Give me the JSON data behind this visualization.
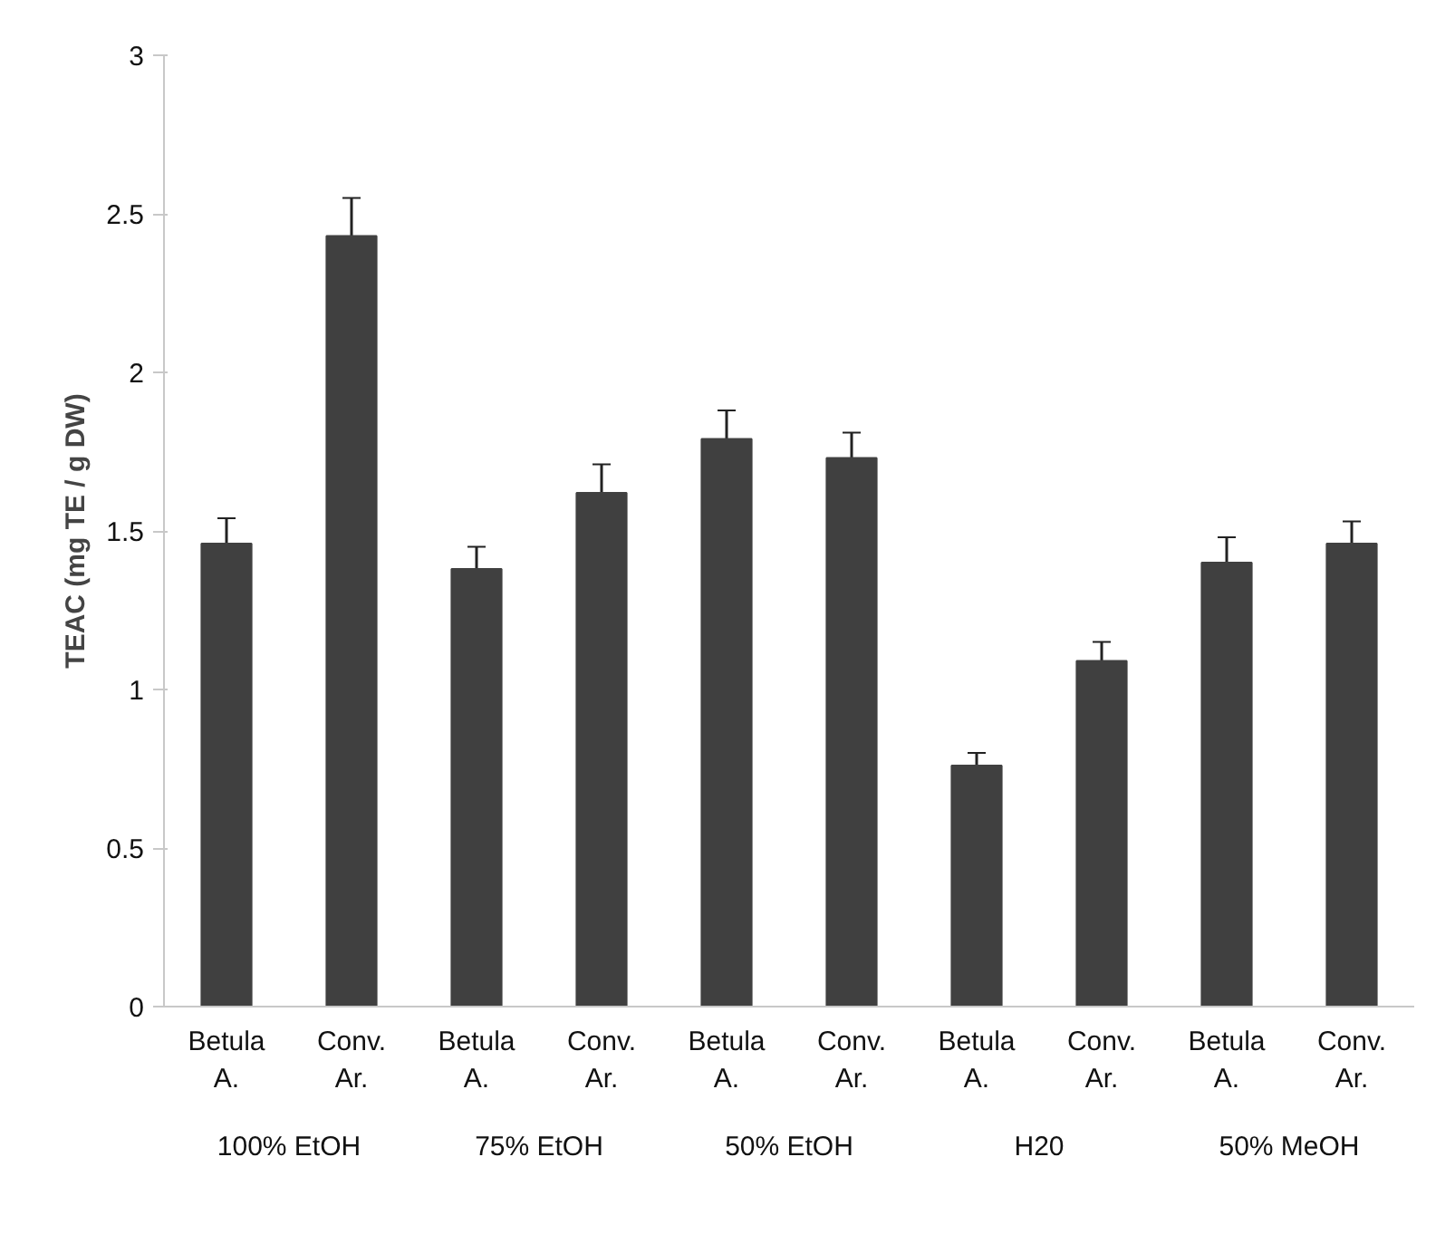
{
  "chart_data": {
    "type": "bar",
    "ylabel": "TEAC (mg TE / g DW)",
    "categories": [
      "Betula A.",
      "Conv. Ar.",
      "Betula A.",
      "Conv. Ar.",
      "Betula A.",
      "Conv. Ar.",
      "Betula A.",
      "Conv. Ar.",
      "Betula A.",
      "Conv. Ar."
    ],
    "values": [
      1.46,
      2.43,
      1.38,
      1.62,
      1.79,
      1.73,
      0.76,
      1.09,
      1.4,
      1.46
    ],
    "errors": [
      0.08,
      0.12,
      0.07,
      0.09,
      0.09,
      0.08,
      0.04,
      0.06,
      0.08,
      0.07
    ],
    "color": "#404040",
    "annotations": [
      "100% EtOH",
      "75% EtOH",
      "50% EtOH",
      "H20",
      "50% MeOH"
    ],
    "ylim": [
      0,
      3
    ],
    "yticks": [
      0,
      0.5,
      1,
      1.5,
      2,
      2.5,
      3
    ],
    "grid": false
  }
}
